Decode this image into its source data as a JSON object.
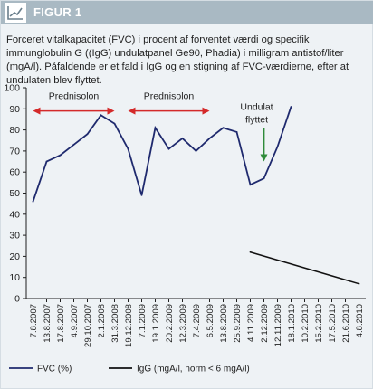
{
  "figure": {
    "label": "FIGUR 1",
    "caption": "Forceret vitalkapacitet (FVC) i procent af forventet værdi og specifik immunglobulin G ((IgG) undulatpanel Ge90, Phadia) i milligram antistof/liter (mgA/l). Påfaldende er et fald i IgG og en stigning af FVC-værdierne, efter at undulaten blev flyttet."
  },
  "colors": {
    "fvc": "#1f2a6e",
    "igg": "#111111",
    "prednisolon_arrow": "#d42a2a",
    "undulat_arrow": "#2e8b3a",
    "header": "#a9b9c3",
    "panel": "#eef2f5"
  },
  "chart_data": {
    "type": "line",
    "categories": [
      "7.8.2007",
      "13.8.2007",
      "17.8.2007",
      "4.9.2007",
      "29.10.2007",
      "2.1.2008",
      "31.3.2008",
      "19.12.2008",
      "7.1.2009",
      "19.1.2009",
      "20.2.2009",
      "12.3.2009",
      "7.4.2009",
      "6.5.2009",
      "13.8.2009",
      "25.9.2009",
      "4.11.2009",
      "2.12.2009",
      "12.11.2009",
      "18.1.2010",
      "10.2.2010",
      "15.2.2010",
      "17.5.2010",
      "21.6.2010",
      "4.8.2010"
    ],
    "ylim": [
      0,
      100
    ],
    "yticks": [
      0,
      10,
      20,
      30,
      40,
      50,
      60,
      70,
      80,
      90,
      100
    ],
    "series": [
      {
        "name": "FVC (%)",
        "key": "fvc",
        "points": [
          {
            "x": "7.8.2007",
            "y": 46
          },
          {
            "x": "13.8.2007",
            "y": 65
          },
          {
            "x": "17.8.2007",
            "y": 68
          },
          {
            "x": "4.9.2007",
            "y": 73
          },
          {
            "x": "29.10.2007",
            "y": 78
          },
          {
            "x": "2.1.2008",
            "y": 87
          },
          {
            "x": "31.3.2008",
            "y": 83
          },
          {
            "x": "19.12.2008",
            "y": 71
          },
          {
            "x": "7.1.2009",
            "y": 49
          },
          {
            "x": "19.1.2009",
            "y": 81
          },
          {
            "x": "20.2.2009",
            "y": 71
          },
          {
            "x": "12.3.2009",
            "y": 76
          },
          {
            "x": "7.4.2009",
            "y": 70
          },
          {
            "x": "6.5.2009",
            "y": 76
          },
          {
            "x": "13.8.2009",
            "y": 81
          },
          {
            "x": "25.9.2009",
            "y": 79
          },
          {
            "x": "4.11.2009",
            "y": 54
          },
          {
            "x": "2.12.2009",
            "y": 57
          },
          {
            "x": "12.11.2009",
            "y": 72
          },
          {
            "x": "18.1.2010",
            "y": 91
          }
        ]
      },
      {
        "name": "IgG (mgA/l, norm < 6 mgA/l)",
        "key": "igg",
        "points": [
          {
            "x": "4.11.2009",
            "y": 22
          },
          {
            "x": "4.8.2010",
            "y": 7
          }
        ]
      }
    ],
    "annotations": [
      {
        "text": "Prednisolon",
        "kind": "range",
        "from": "7.8.2007",
        "to": "31.3.2008",
        "y": 89
      },
      {
        "text": "Prednisolon",
        "kind": "range",
        "from": "19.12.2008",
        "to": "6.5.2009",
        "y": 89
      },
      {
        "text": "Undulat flyttet",
        "line1": "Undulat",
        "line2": "flyttet",
        "kind": "down-arrow",
        "at": "2.12.2009",
        "y_from": 81,
        "y_to": 65
      }
    ],
    "legend": [
      {
        "label": "FVC (%)",
        "key": "fvc"
      },
      {
        "label": "IgG (mgA/l, norm < 6 mgA/l)",
        "key": "igg"
      }
    ],
    "grid": false
  }
}
